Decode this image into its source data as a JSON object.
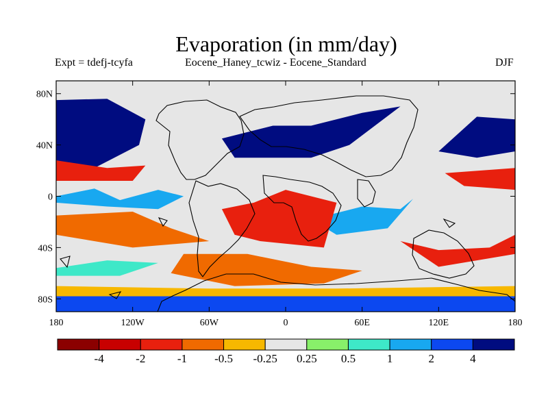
{
  "title": "Evaporation (in mm/day)",
  "subtitle_left": "Expt = tdefj-tcyfa",
  "subtitle_center": "Eocene_Haney_tcwiz - Eocene_Standard",
  "subtitle_right": "DJF",
  "map": {
    "projection": "cylindrical-equidistant",
    "lon_range": [
      -180,
      180
    ],
    "lat_range": [
      -90,
      90
    ],
    "lat_ticks": [
      {
        "value": 80,
        "label": "80N"
      },
      {
        "value": 40,
        "label": "40N"
      },
      {
        "value": 0,
        "label": "0"
      },
      {
        "value": -40,
        "label": "40S"
      },
      {
        "value": -80,
        "label": "80S"
      }
    ],
    "lon_ticks": [
      {
        "value": -180,
        "label": "180"
      },
      {
        "value": -120,
        "label": "120W"
      },
      {
        "value": -60,
        "label": "60W"
      },
      {
        "value": 0,
        "label": "0"
      },
      {
        "value": 60,
        "label": "60E"
      },
      {
        "value": 120,
        "label": "120E"
      },
      {
        "value": 180,
        "label": "180"
      }
    ]
  },
  "colorbar": {
    "colors": [
      "#8b0000",
      "#c80000",
      "#e8200e",
      "#f06a00",
      "#f7b800",
      "#e6e6e6",
      "#88f06a",
      "#3ee8c8",
      "#18a8f0",
      "#0c48f0",
      "#000c80"
    ],
    "labels": [
      "-4",
      "-2",
      "-1",
      "-0.5",
      "-0.25",
      "0.25",
      "0.5",
      "1",
      "2",
      "4"
    ]
  },
  "field_regions": [
    {
      "value": 4,
      "points": [
        [
          -180,
          75
        ],
        [
          -140,
          76
        ],
        [
          -110,
          60
        ],
        [
          -115,
          40
        ],
        [
          -150,
          22
        ],
        [
          -180,
          28
        ]
      ]
    },
    {
      "value": 4,
      "points": [
        [
          -50,
          45
        ],
        [
          -10,
          55
        ],
        [
          20,
          55
        ],
        [
          60,
          65
        ],
        [
          90,
          70
        ],
        [
          50,
          40
        ],
        [
          20,
          30
        ],
        [
          -40,
          30
        ]
      ]
    },
    {
      "value": 4,
      "points": [
        [
          120,
          35
        ],
        [
          150,
          62
        ],
        [
          180,
          60
        ],
        [
          180,
          35
        ],
        [
          150,
          30
        ]
      ]
    },
    {
      "value": 1,
      "points": [
        [
          -180,
          0
        ],
        [
          -150,
          6
        ],
        [
          -130,
          -3
        ],
        [
          -100,
          5
        ],
        [
          -80,
          0
        ],
        [
          -100,
          -10
        ],
        [
          -140,
          -8
        ],
        [
          -180,
          -5
        ]
      ]
    },
    {
      "value": 1,
      "points": [
        [
          20,
          -18
        ],
        [
          60,
          -8
        ],
        [
          90,
          -10
        ],
        [
          100,
          -2
        ],
        [
          80,
          -25
        ],
        [
          40,
          -30
        ]
      ]
    },
    {
      "value": -2,
      "points": [
        [
          -180,
          28
        ],
        [
          -140,
          22
        ],
        [
          -110,
          24
        ],
        [
          -120,
          12
        ],
        [
          -180,
          12
        ]
      ]
    },
    {
      "value": -2,
      "points": [
        [
          125,
          18
        ],
        [
          180,
          22
        ],
        [
          180,
          5
        ],
        [
          140,
          8
        ]
      ]
    },
    {
      "value": -2,
      "points": [
        [
          -50,
          -10
        ],
        [
          -25,
          -5
        ],
        [
          0,
          5
        ],
        [
          40,
          -5
        ],
        [
          30,
          -40
        ],
        [
          -20,
          -35
        ],
        [
          -40,
          -30
        ]
      ]
    },
    {
      "value": -2,
      "points": [
        [
          90,
          -35
        ],
        [
          120,
          -42
        ],
        [
          160,
          -40
        ],
        [
          180,
          -30
        ],
        [
          180,
          -45
        ],
        [
          120,
          -55
        ]
      ]
    },
    {
      "value": -1,
      "points": [
        [
          -180,
          -15
        ],
        [
          -120,
          -12
        ],
        [
          -90,
          -25
        ],
        [
          -60,
          -35
        ],
        [
          -120,
          -40
        ],
        [
          -180,
          -30
        ]
      ]
    },
    {
      "value": -1,
      "points": [
        [
          -80,
          -45
        ],
        [
          -30,
          -45
        ],
        [
          20,
          -55
        ],
        [
          60,
          -58
        ],
        [
          30,
          -68
        ],
        [
          -40,
          -70
        ],
        [
          -90,
          -60
        ]
      ]
    },
    {
      "value": -0.5,
      "points": [
        [
          -180,
          -70
        ],
        [
          -60,
          -72
        ],
        [
          40,
          -72
        ],
        [
          180,
          -70
        ],
        [
          180,
          -78
        ],
        [
          -180,
          -78
        ]
      ]
    },
    {
      "value": 0.5,
      "points": [
        [
          -180,
          -56
        ],
        [
          -140,
          -50
        ],
        [
          -100,
          -52
        ],
        [
          -130,
          -62
        ],
        [
          -180,
          -62
        ]
      ]
    },
    {
      "value": 2,
      "points": [
        [
          -180,
          -78
        ],
        [
          180,
          -78
        ],
        [
          180,
          -90
        ],
        [
          -180,
          -90
        ]
      ]
    }
  ]
}
